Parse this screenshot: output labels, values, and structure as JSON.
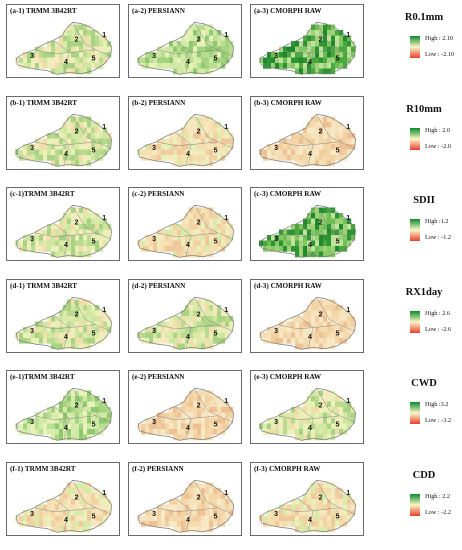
{
  "rows": [
    {
      "panels": [
        {
          "title": "(a-1) TRMM 3B42RT",
          "scheme": "mixed-green"
        },
        {
          "title": "(a-2) PERSIANN",
          "scheme": "green"
        },
        {
          "title": "(a-3) CMORPH RAW",
          "scheme": "green-strong"
        }
      ],
      "legend": {
        "title": "R0.1mm",
        "high": "High : 2.10",
        "low": "Low : -2.10"
      }
    },
    {
      "panels": [
        {
          "title": "(b-1) TRMM 3B42RT",
          "scheme": "mixed-green"
        },
        {
          "title": "(b-2) PERSIANN",
          "scheme": "mixed-orange"
        },
        {
          "title": "(b-3) CMORPH RAW",
          "scheme": "orange"
        }
      ],
      "legend": {
        "title": "R10mm",
        "high": "High : 2.0",
        "low": "Low : -2.0"
      }
    },
    {
      "panels": [
        {
          "title": "(c-1)TRMM 3B42RT",
          "scheme": "mixed-green"
        },
        {
          "title": "(c-2) PERSIANN",
          "scheme": "mixed-orange"
        },
        {
          "title": "(c-3) CMORPH RAW",
          "scheme": "green-strong"
        }
      ],
      "legend": {
        "title": "SDII",
        "high": "High :1.2",
        "low": "Low : -1.2"
      }
    },
    {
      "panels": [
        {
          "title": "(d-1) TRMM 3B42RT",
          "scheme": "mixed-green"
        },
        {
          "title": "(d-2) PERSIANN",
          "scheme": "mixed-green"
        },
        {
          "title": "(d-3) CMORPH RAW",
          "scheme": "orange"
        }
      ],
      "legend": {
        "title": "RX1day",
        "high": "High : 2.6",
        "low": "Low : -2.6"
      }
    },
    {
      "panels": [
        {
          "title": "(e-1)TRMM 3B42RT",
          "scheme": "green"
        },
        {
          "title": "(e-2) PERSIANN",
          "scheme": "orange"
        },
        {
          "title": "(e-3) CMORPH RAW",
          "scheme": "mixed-green"
        }
      ],
      "legend": {
        "title": "CWD",
        "high": "High :3.2",
        "low": "Low : -3.2"
      }
    },
    {
      "panels": [
        {
          "title": "(f-1) TRMM 3B42RT",
          "scheme": "mixed-orange"
        },
        {
          "title": "(f-2) PERSIANN",
          "scheme": "orange"
        },
        {
          "title": "(f-3) CMORPH RAW",
          "scheme": "mixed-orange"
        }
      ],
      "legend": {
        "title": "CDD",
        "high": "High : 2.2",
        "low": "Low : -2.2"
      }
    }
  ],
  "region_labels": [
    "1",
    "2",
    "3",
    "4",
    "5"
  ],
  "colors": {
    "high": "#0a8a2a",
    "mid": "#fbf6c8",
    "low": "#e8402e"
  }
}
